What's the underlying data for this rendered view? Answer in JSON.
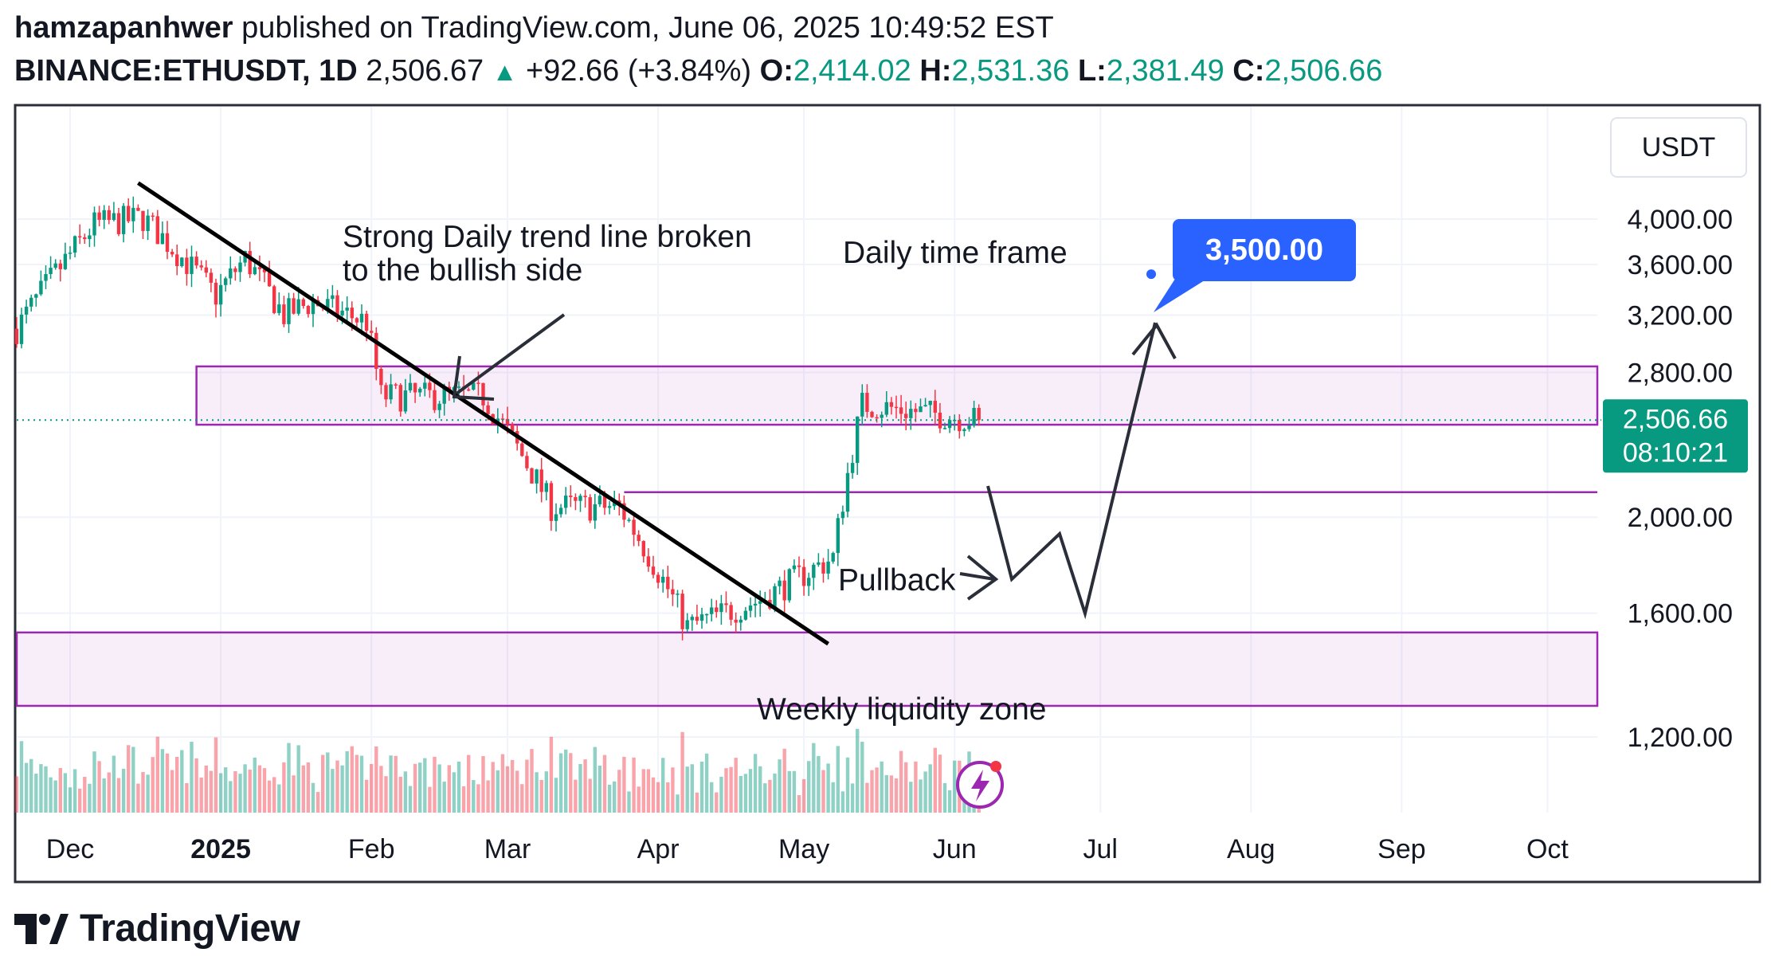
{
  "header": {
    "author": "hamzapanhwer",
    "published_text": "published on TradingView.com, June 06, 2025 10:49:52 EST",
    "symbol": "BINANCE:ETHUSDT, 1D",
    "last": "2,506.67",
    "change": "+92.66 (+3.84%)",
    "o_label": "O:",
    "o_value": "2,414.02",
    "h_label": "H:",
    "h_value": "2,531.36",
    "l_label": "L:",
    "l_value": "2,381.49",
    "c_label": "C:",
    "c_value": "2,506.66"
  },
  "footer": {
    "brand": "TradingView"
  },
  "chart_data": {
    "type": "candlestick",
    "currency_label": "USDT",
    "y_ticks": [
      "4,000.00",
      "3,600.00",
      "3,200.00",
      "2,800.00",
      "2,000.00",
      "1,600.00",
      "1,200.00"
    ],
    "y_tick_values": [
      4000,
      3600,
      3200,
      2800,
      2000,
      1600,
      1200
    ],
    "x_ticks": [
      "Dec",
      "2025",
      "Feb",
      "Mar",
      "Apr",
      "May",
      "Jun",
      "Jul",
      "Aug",
      "Sep",
      "Oct"
    ],
    "current_price_label": "2,506.66",
    "countdown_label": "08:10:21",
    "current_price": 2506.66,
    "target_label": "3,500.00",
    "target_price": 3500,
    "annotations": {
      "trendline_note_line1": "Strong Daily trend line broken",
      "trendline_note_line2": "to the bullish side",
      "timeframe_note": "Daily time frame",
      "pullback_note": "Pullback",
      "liquidity_note": "Weekly liquidity zone"
    },
    "zones": [
      {
        "name": "resistance box",
        "from": 2480,
        "to": 2840
      },
      {
        "name": "pullback level",
        "from": 2120,
        "to": 2120
      },
      {
        "name": "weekly liquidity zone",
        "from": 1290,
        "to": 1530
      }
    ],
    "price_path": [
      {
        "date": "2024-11-20",
        "close": 3100
      },
      {
        "date": "2024-12-06",
        "close": 3950
      },
      {
        "date": "2024-12-16",
        "close": 4010
      },
      {
        "date": "2024-12-31",
        "close": 3350
      },
      {
        "date": "2025-01-06",
        "close": 3650
      },
      {
        "date": "2025-01-14",
        "close": 3200
      },
      {
        "date": "2025-01-20",
        "close": 3300
      },
      {
        "date": "2025-01-31",
        "close": 3150
      },
      {
        "date": "2025-02-03",
        "close": 2650
      },
      {
        "date": "2025-02-24",
        "close": 2650
      },
      {
        "date": "2025-03-10",
        "close": 2050
      },
      {
        "date": "2025-03-24",
        "close": 2050
      },
      {
        "date": "2025-04-07",
        "close": 1550
      },
      {
        "date": "2025-04-22",
        "close": 1650
      },
      {
        "date": "2025-05-07",
        "close": 1820
      },
      {
        "date": "2025-05-13",
        "close": 2600
      },
      {
        "date": "2025-06-06",
        "close": 2507
      }
    ],
    "grid": true
  },
  "colors": {
    "up": "#089981",
    "down": "#f23645",
    "zone": "#9c27b0",
    "target": "#2962ff"
  },
  "icons": {
    "bolt": "bolt-icon",
    "logo": "tradingview-logo-icon"
  }
}
